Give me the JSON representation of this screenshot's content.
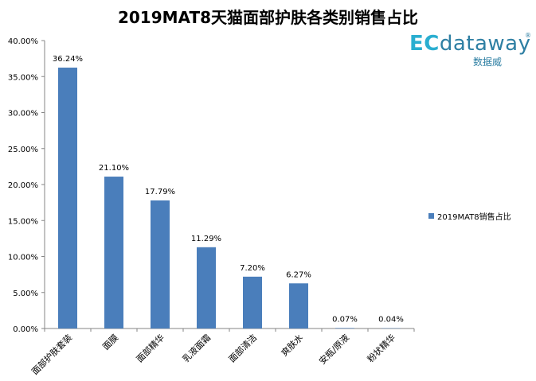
{
  "chart_data": {
    "type": "bar",
    "title": "2019MAT8天猫面部护肤各类别销售占比",
    "categories": [
      "面部护肤套装",
      "面膜",
      "面部精华",
      "乳液面霜",
      "面部清洁",
      "爽肤水",
      "安瓶/原液",
      "粉状精华"
    ],
    "series": [
      {
        "name": "2019MAT8销售占比",
        "values": [
          36.24,
          21.1,
          17.79,
          11.29,
          7.2,
          6.27,
          0.07,
          0.04
        ],
        "labels": [
          "36.24%",
          "21.10%",
          "17.79%",
          "11.29%",
          "7.20%",
          "6.27%",
          "0.07%",
          "0.04%"
        ],
        "color": "#4a7ebb"
      }
    ],
    "ylim": [
      0,
      40
    ],
    "yticks": [
      "0.00%",
      "5.00%",
      "10.00%",
      "15.00%",
      "20.00%",
      "25.00%",
      "30.00%",
      "35.00%",
      "40.00%"
    ],
    "xlabel": "",
    "ylabel": "",
    "grid": false,
    "legend_position": "right"
  },
  "logo": {
    "ec": "EC",
    "name": "dataway",
    "registered": "®",
    "subtitle": "数据威"
  }
}
